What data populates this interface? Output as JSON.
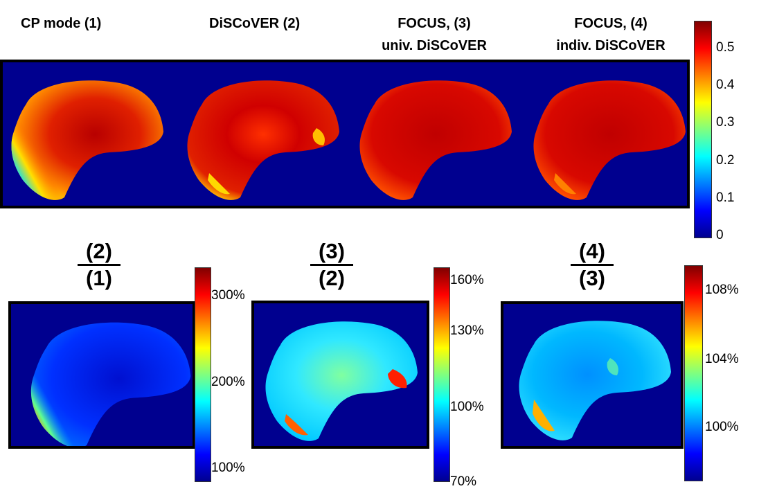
{
  "top_titles": [
    {
      "line1": "CP mode (1)",
      "line2": ""
    },
    {
      "line1": "DiSCoVER (2)",
      "line2": ""
    },
    {
      "line1": "FOCUS, (3)",
      "line2": "univ. DiSCoVER"
    },
    {
      "line1": "FOCUS, (4)",
      "line2": "indiv. DiSCoVER"
    }
  ],
  "top_colorbar": {
    "ticks": [
      "0.5",
      "0.4",
      "0.3",
      "0.2",
      "0.1",
      "0"
    ]
  },
  "ratios": [
    {
      "numerator": "(2)",
      "denominator": "(1)",
      "ticks": [
        "300%",
        "200%",
        "100%"
      ]
    },
    {
      "numerator": "(3)",
      "denominator": "(2)",
      "ticks": [
        "160%",
        "130%",
        "100%",
        "70%"
      ]
    },
    {
      "numerator": "(4)",
      "denominator": "(3)",
      "ticks": [
        "108%",
        "104%",
        "100%"
      ]
    }
  ],
  "colors": {
    "background_map": "#00008f",
    "jet_low": "#00008f",
    "jet_high": "#800000"
  }
}
